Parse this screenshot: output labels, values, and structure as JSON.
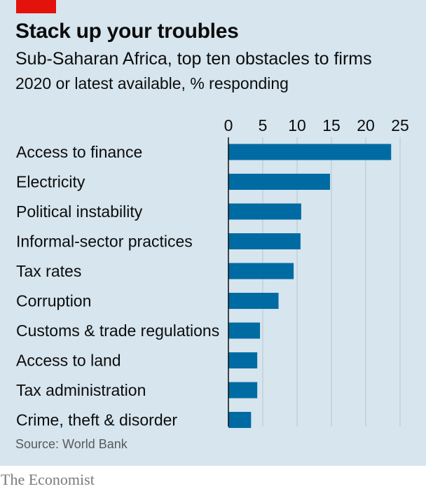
{
  "colors": {
    "panel": "#d6e5ee",
    "bar": "#006ba2",
    "accent": "#e3120b",
    "grid": "#b7c6ce"
  },
  "header": {
    "title": "Stack up your troubles",
    "subtitle": "Sub-Saharan Africa, top ten obstacles to firms",
    "note": "2020 or latest available, % responding"
  },
  "footer": {
    "source": "Source: World Bank",
    "brand": "The Economist"
  },
  "chart_data": {
    "type": "bar",
    "orientation": "horizontal",
    "xlim": [
      0,
      25
    ],
    "ticks": [
      "0",
      "5",
      "10",
      "15",
      "20",
      "25"
    ],
    "grid": true,
    "categories": [
      "Access to finance",
      "Electricity",
      "Political instability",
      "Informal-sector practices",
      "Tax rates",
      "Corruption",
      "Customs & trade regulations",
      "Access to land",
      "Tax administration",
      "Crime, theft & disorder"
    ],
    "values": [
      23.7,
      14.8,
      10.6,
      10.5,
      9.5,
      7.3,
      4.6,
      4.2,
      4.2,
      3.3
    ]
  }
}
